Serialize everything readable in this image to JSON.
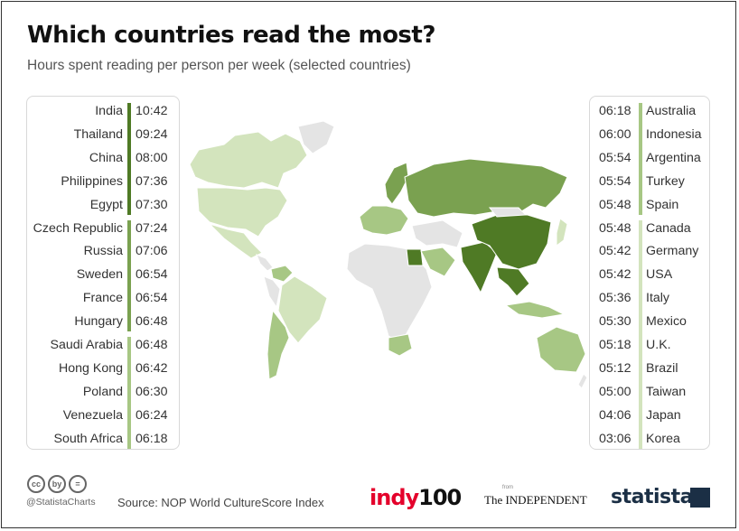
{
  "title": "Which countries read the most?",
  "subtitle": "Hours spent reading per person per week (selected countries)",
  "colors": {
    "tier1": "#4f7a25",
    "tier2": "#7aa150",
    "tier3": "#a7c784",
    "tier4": "#d3e4bd",
    "nodata": "#e4e4e4",
    "text": "#333333"
  },
  "chart_data": {
    "type": "table",
    "title": "Which countries read the most?",
    "subtitle": "Hours spent reading per person per week (selected countries)",
    "unit": "hh:mm",
    "rows": [
      {
        "country": "India",
        "time": "10:42",
        "tier": 1
      },
      {
        "country": "Thailand",
        "time": "09:24",
        "tier": 1
      },
      {
        "country": "China",
        "time": "08:00",
        "tier": 1
      },
      {
        "country": "Philippines",
        "time": "07:36",
        "tier": 1
      },
      {
        "country": "Egypt",
        "time": "07:30",
        "tier": 1
      },
      {
        "country": "Czech Republic",
        "time": "07:24",
        "tier": 2
      },
      {
        "country": "Russia",
        "time": "07:06",
        "tier": 2
      },
      {
        "country": "Sweden",
        "time": "06:54",
        "tier": 2
      },
      {
        "country": "France",
        "time": "06:54",
        "tier": 2
      },
      {
        "country": "Hungary",
        "time": "06:48",
        "tier": 2
      },
      {
        "country": "Saudi Arabia",
        "time": "06:48",
        "tier": 3
      },
      {
        "country": "Hong Kong",
        "time": "06:42",
        "tier": 3
      },
      {
        "country": "Poland",
        "time": "06:30",
        "tier": 3
      },
      {
        "country": "Venezuela",
        "time": "06:24",
        "tier": 3
      },
      {
        "country": "South Africa",
        "time": "06:18",
        "tier": 3
      },
      {
        "country": "Australia",
        "time": "06:18",
        "tier": 3
      },
      {
        "country": "Indonesia",
        "time": "06:00",
        "tier": 3
      },
      {
        "country": "Argentina",
        "time": "05:54",
        "tier": 3
      },
      {
        "country": "Turkey",
        "time": "05:54",
        "tier": 3
      },
      {
        "country": "Spain",
        "time": "05:48",
        "tier": 3
      },
      {
        "country": "Canada",
        "time": "05:48",
        "tier": 4
      },
      {
        "country": "Germany",
        "time": "05:42",
        "tier": 4
      },
      {
        "country": "USA",
        "time": "05:42",
        "tier": 4
      },
      {
        "country": "Italy",
        "time": "05:36",
        "tier": 4
      },
      {
        "country": "Mexico",
        "time": "05:30",
        "tier": 4
      },
      {
        "country": "U.K.",
        "time": "05:18",
        "tier": 4
      },
      {
        "country": "Brazil",
        "time": "05:12",
        "tier": 4
      },
      {
        "country": "Taiwan",
        "time": "05:00",
        "tier": 4
      },
      {
        "country": "Japan",
        "time": "04:06",
        "tier": 4
      },
      {
        "country": "Korea",
        "time": "03:06",
        "tier": 4
      }
    ]
  },
  "map": {
    "regions": [
      {
        "name": "Canada",
        "tier": 4
      },
      {
        "name": "Greenland",
        "tier": 0
      },
      {
        "name": "USA",
        "tier": 4
      },
      {
        "name": "Mexico",
        "tier": 4
      },
      {
        "name": "Central America",
        "tier": 0
      },
      {
        "name": "Venezuela",
        "tier": 3
      },
      {
        "name": "Brazil",
        "tier": 4
      },
      {
        "name": "Argentina",
        "tier": 3
      },
      {
        "name": "South America (other)",
        "tier": 0
      },
      {
        "name": "Scandinavia",
        "tier": 2
      },
      {
        "name": "Western Europe",
        "tier": 3
      },
      {
        "name": "Russia",
        "tier": 2
      },
      {
        "name": "Africa",
        "tier": 0
      },
      {
        "name": "Egypt",
        "tier": 1
      },
      {
        "name": "South Africa",
        "tier": 3
      },
      {
        "name": "Middle East",
        "tier": 0
      },
      {
        "name": "Saudi Arabia",
        "tier": 3
      },
      {
        "name": "India",
        "tier": 1
      },
      {
        "name": "China",
        "tier": 1
      },
      {
        "name": "Mongolia",
        "tier": 0
      },
      {
        "name": "Southeast Asia",
        "tier": 1
      },
      {
        "name": "Indonesia",
        "tier": 3
      },
      {
        "name": "Japan",
        "tier": 4
      },
      {
        "name": "Australia",
        "tier": 3
      },
      {
        "name": "New Zealand",
        "tier": 0
      }
    ]
  },
  "footer": {
    "license_icons": [
      "cc",
      "by",
      "="
    ],
    "handle": "@StatistaCharts",
    "source": "Source: NOP World CultureScore Index",
    "logo_indy_a": "indy",
    "logo_indy_b": "100",
    "logo_independent": "The INDEPENDENT",
    "logo_from": "from",
    "logo_statista": "statista"
  }
}
